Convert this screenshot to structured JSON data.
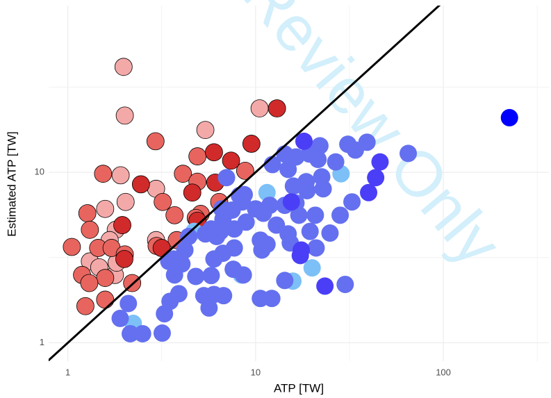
{
  "chart_data": {
    "type": "scatter",
    "x_label": "ATP [TW]",
    "y_label": "Estimated ATP [TW]",
    "watermark": "Review Only",
    "log_x": true,
    "log_y": true,
    "grid": true,
    "identity_line": true,
    "xlim": [
      0.79,
      365
    ],
    "ylim": [
      0.78,
      95
    ],
    "xticks": [
      1,
      10,
      100
    ],
    "yticks": [
      1,
      10
    ],
    "xminor": [
      3.162,
      31.62,
      316.2
    ],
    "yminor": [
      3.162,
      31.62
    ],
    "series": [
      {
        "color": "#f4a9a9",
        "outline": true,
        "x": [
          1.98,
          2.01,
          10.5,
          5.4,
          1.91,
          2.95,
          2.03,
          1.8,
          2.95,
          1.31,
          1.78,
          1.47,
          1.82,
          1.58,
          1.67
        ],
        "values": [
          41.5,
          21.5,
          23.7,
          17.7,
          9.6,
          8.0,
          6.7,
          4.6,
          4.0,
          3.0,
          2.5,
          2.77,
          2.95,
          6.1,
          4.0
        ]
      },
      {
        "color": "#e8655f",
        "outline": true,
        "x": [
          2.93,
          4.9,
          1.54,
          4.1,
          8.8,
          4.9,
          6.4,
          3.2,
          1.27,
          3.7,
          5.1,
          1.31,
          3.8,
          2.97,
          1.05,
          1.45,
          1.71,
          2.01,
          1.19,
          1.58,
          1.3,
          2.2,
          1.58,
          1.24,
          4.8
        ],
        "values": [
          15.2,
          12.4,
          9.8,
          9.8,
          10.2,
          8.8,
          6.7,
          6.7,
          5.75,
          5.6,
          5.7,
          4.6,
          4.0,
          3.7,
          3.65,
          3.6,
          3.6,
          3.3,
          2.5,
          2.4,
          2.24,
          2.24,
          1.79,
          1.64,
          5.4
        ]
      },
      {
        "color": "#d12a2a",
        "outline": true,
        "x": [
          13,
          9.5,
          6.0,
          7.4,
          2.45,
          4.6,
          4.9,
          2.0,
          3.16,
          1.95,
          6.1
        ],
        "values": [
          23.7,
          14.7,
          13.1,
          11.7,
          8.5,
          7.6,
          5.2,
          3.1,
          3.6,
          4.9,
          8.7
        ]
      },
      {
        "color": "#7cc0f7",
        "outline": false,
        "x": [
          28.5,
          11.5,
          20,
          4.7,
          15.8,
          2.23,
          8.4
        ],
        "values": [
          9.8,
          7.6,
          2.75,
          4.5,
          2.3,
          1.3,
          2.5
        ]
      },
      {
        "color": "#6470ef",
        "outline": false,
        "x": [
          65,
          39.2,
          31,
          34,
          32.6,
          28.2,
          24.9,
          22,
          19.3,
          21.5,
          26.7,
          16.4,
          14.3,
          12.3,
          22.5,
          18.6,
          15.9,
          22.9,
          18.8,
          16.4,
          14.3,
          11.9,
          11.0,
          12.9,
          17.0,
          19.5,
          20.8,
          14.9,
          15.3,
          21,
          10.6,
          10.8,
          8.9,
          8.5,
          8.2,
          8.7,
          10,
          7.7,
          6.5,
          6.6,
          7.5,
          6.7,
          5.8,
          5.4,
          6.2,
          6.7,
          7.7,
          7.6,
          8.6,
          4.8,
          5.8,
          6.0,
          4.4,
          4.2,
          4.05,
          3.65,
          3.45,
          3.7,
          3.9,
          3.5,
          3.27,
          3.18,
          2.5,
          2.15,
          2.1,
          1.9,
          5.3,
          6.0,
          6.75,
          5.65,
          10.6,
          12.2,
          14.3,
          30,
          7.0,
          11.5,
          14.9
        ],
        "values": [
          12.9,
          15.0,
          14.6,
          13.5,
          6.7,
          5.6,
          4.4,
          14.3,
          12.8,
          11.9,
          11.5,
          12.3,
          12.8,
          11.1,
          9.4,
          8.8,
          8.3,
          8.0,
          7.8,
          6.6,
          6.4,
          6.4,
          5.75,
          4.9,
          5.6,
          4.5,
          5.6,
          4.35,
          3.85,
          3.6,
          4.0,
          3.5,
          5.1,
          6.7,
          7.3,
          7.4,
          6.1,
          4.65,
          4.5,
          6.1,
          6.0,
          5.3,
          4.65,
          4.35,
          4.2,
          3.35,
          3.6,
          2.7,
          2.5,
          2.45,
          2.48,
          3.1,
          4.2,
          3.5,
          2.9,
          3.1,
          3.0,
          2.5,
          1.94,
          1.75,
          1.48,
          1.14,
          1.13,
          1.13,
          1.7,
          1.39,
          1.89,
          1.92,
          1.89,
          1.6,
          1.82,
          1.82,
          2.32,
          2.2,
          9.3,
          3.78,
          10.4
        ]
      },
      {
        "color": "#4a3ff6",
        "outline": false,
        "x": [
          15.5,
          17.5,
          17.3,
          46,
          43.6,
          40,
          18.1,
          23.4
        ],
        "values": [
          6.7,
          3.5,
          3.25,
          11.5,
          9.3,
          7.6,
          15.2,
          2.15
        ]
      },
      {
        "color": "#0000ff",
        "outline": false,
        "x": [
          225
        ],
        "values": [
          20.9
        ]
      }
    ]
  }
}
